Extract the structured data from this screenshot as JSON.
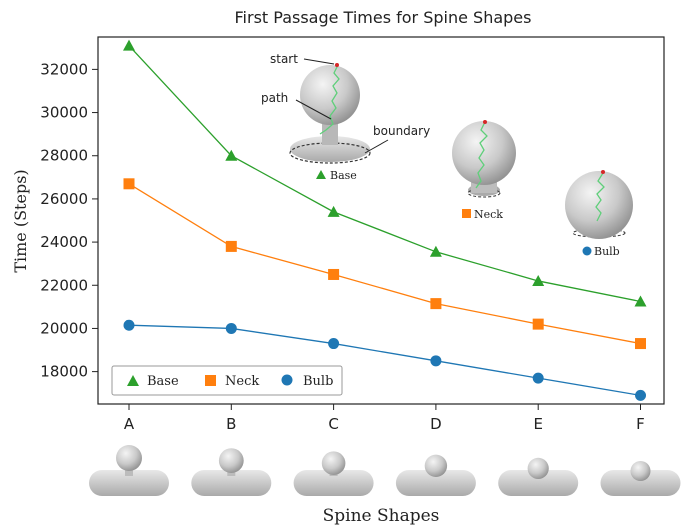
{
  "chart_data": {
    "type": "line",
    "title": "First Passage Times for Spine Shapes",
    "xlabel": "Spine Shapes",
    "ylabel": "Time (Steps)",
    "categories": [
      "A",
      "B",
      "C",
      "D",
      "E",
      "F"
    ],
    "ylim": [
      16500,
      33500
    ],
    "yticks": [
      18000,
      20000,
      22000,
      24000,
      26000,
      28000,
      30000,
      32000
    ],
    "grid": false,
    "legend_position": "bottom-left",
    "series": [
      {
        "name": "Base",
        "marker": "triangle",
        "color": "#2ca02c",
        "values": [
          33100,
          28000,
          25400,
          23550,
          22200,
          21250
        ]
      },
      {
        "name": "Neck",
        "marker": "square",
        "color": "#ff7f0e",
        "values": [
          26700,
          23800,
          22500,
          21150,
          20200,
          19300
        ]
      },
      {
        "name": "Bulb",
        "marker": "circle",
        "color": "#1f77b4",
        "values": [
          20150,
          20000,
          19300,
          18500,
          17700,
          16900
        ]
      }
    ],
    "annotations": {
      "start": "start",
      "path": "path",
      "boundary": "boundary",
      "inset_labels": [
        "Base",
        "Neck",
        "Bulb"
      ]
    }
  }
}
